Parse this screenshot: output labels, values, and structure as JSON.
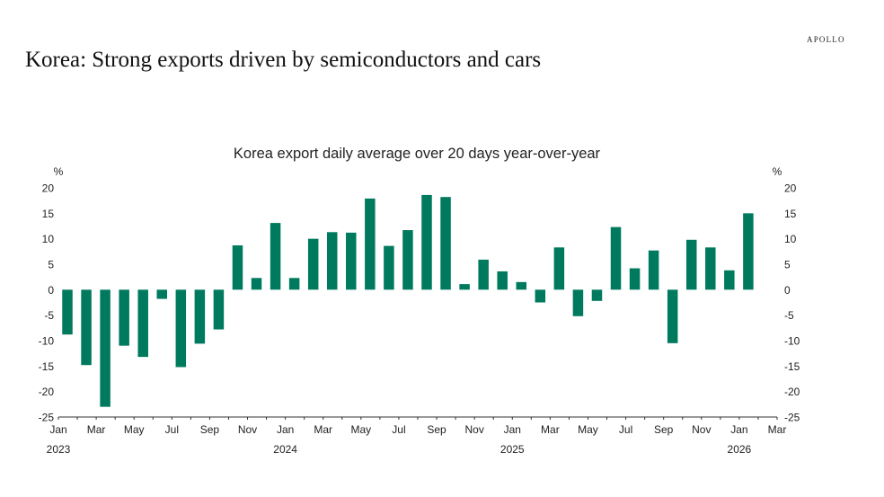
{
  "header": {
    "brand": "APOLLO",
    "title": "Korea: Strong exports driven by semiconductors and cars"
  },
  "colors": {
    "bar": "#007a5e",
    "axis": "#333333",
    "text": "#222222"
  },
  "chart_data": {
    "type": "bar",
    "title": "Korea export daily average over 20 days year-over-year",
    "ylabel_left": "%",
    "ylabel_right": "%",
    "ylim": [
      -25,
      20
    ],
    "yticks": [
      20,
      15,
      10,
      5,
      0,
      -5,
      -10,
      -15,
      -20,
      -25
    ],
    "grid": false,
    "legend": "none",
    "x_tick_labels": [
      "Jan",
      "Mar",
      "May",
      "Jul",
      "Sep",
      "Nov",
      "Jan",
      "Mar",
      "May",
      "Jul",
      "Sep",
      "Nov",
      "Jan",
      "Mar",
      "May",
      "Jul",
      "Sep",
      "Nov",
      "Jan",
      "Mar"
    ],
    "years": [
      {
        "label": "2023",
        "start_month_index": 0
      },
      {
        "label": "2024",
        "start_month_index": 12
      },
      {
        "label": "2025",
        "start_month_index": 24
      },
      {
        "label": "2026",
        "start_month_index": 36
      }
    ],
    "categories": [
      "Jan 2023",
      "Feb 2023",
      "Mar 2023",
      "Apr 2023",
      "May 2023",
      "Jun 2023",
      "Jul 2023",
      "Aug 2023",
      "Sep 2023",
      "Oct 2023",
      "Nov 2023",
      "Dec 2023",
      "Jan 2024",
      "Feb 2024",
      "Mar 2024",
      "Apr 2024",
      "May 2024",
      "Jun 2024",
      "Jul 2024",
      "Aug 2024",
      "Sep 2024",
      "Oct 2024",
      "Nov 2024",
      "Dec 2024",
      "Jan 2025",
      "Feb 2025",
      "Mar 2025",
      "Apr 2025",
      "May 2025",
      "Jun 2025",
      "Jul 2025",
      "Aug 2025",
      "Sep 2025",
      "Oct 2025",
      "Nov 2025",
      "Dec 2025",
      "Jan 2026"
    ],
    "values": [
      -8.8,
      -14.8,
      -23.0,
      -11.0,
      -13.2,
      -1.8,
      -15.2,
      -10.6,
      -7.8,
      8.7,
      2.3,
      13.1,
      2.3,
      10.0,
      11.3,
      11.2,
      17.9,
      8.6,
      11.7,
      18.6,
      18.2,
      1.1,
      5.9,
      3.6,
      1.5,
      -2.5,
      8.3,
      -5.2,
      -2.2,
      12.3,
      4.2,
      7.7,
      -10.5,
      9.8,
      8.3,
      3.8,
      15.0
    ]
  }
}
